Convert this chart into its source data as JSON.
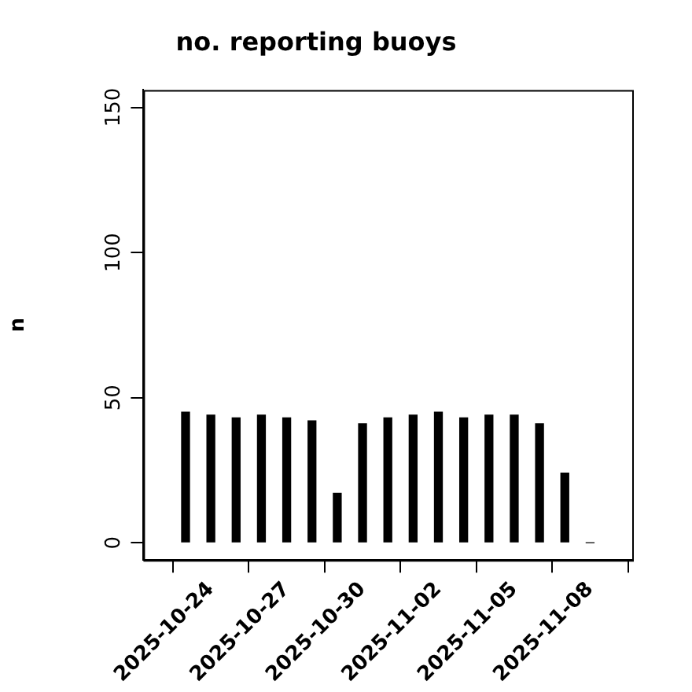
{
  "chart_data": {
    "type": "bar",
    "title": "no. reporting buoys",
    "ylabel": "n",
    "x": [
      "2025-10-23",
      "2025-10-24",
      "2025-10-25",
      "2025-10-26",
      "2025-10-27",
      "2025-10-28",
      "2025-10-29",
      "2025-10-30",
      "2025-10-31",
      "2025-11-01",
      "2025-11-02",
      "2025-11-03",
      "2025-11-04",
      "2025-11-05",
      "2025-11-06",
      "2025-11-07",
      "2025-11-08"
    ],
    "values": [
      45,
      44,
      43,
      44,
      43,
      42,
      17,
      41,
      43,
      44,
      45,
      43,
      44,
      44,
      41,
      24,
      0
    ],
    "color": "#000000",
    "xlim": [
      "2025-10-21T08:00",
      "2025-11-09T16:00"
    ],
    "xticks": [
      "2025-10-24",
      "2025-10-27",
      "2025-10-30",
      "2025-11-02",
      "2025-11-05",
      "2025-11-08"
    ],
    "ylim": [
      -6,
      156
    ],
    "yticks": [
      0,
      50,
      100,
      150
    ],
    "grid": false,
    "legend": false
  }
}
